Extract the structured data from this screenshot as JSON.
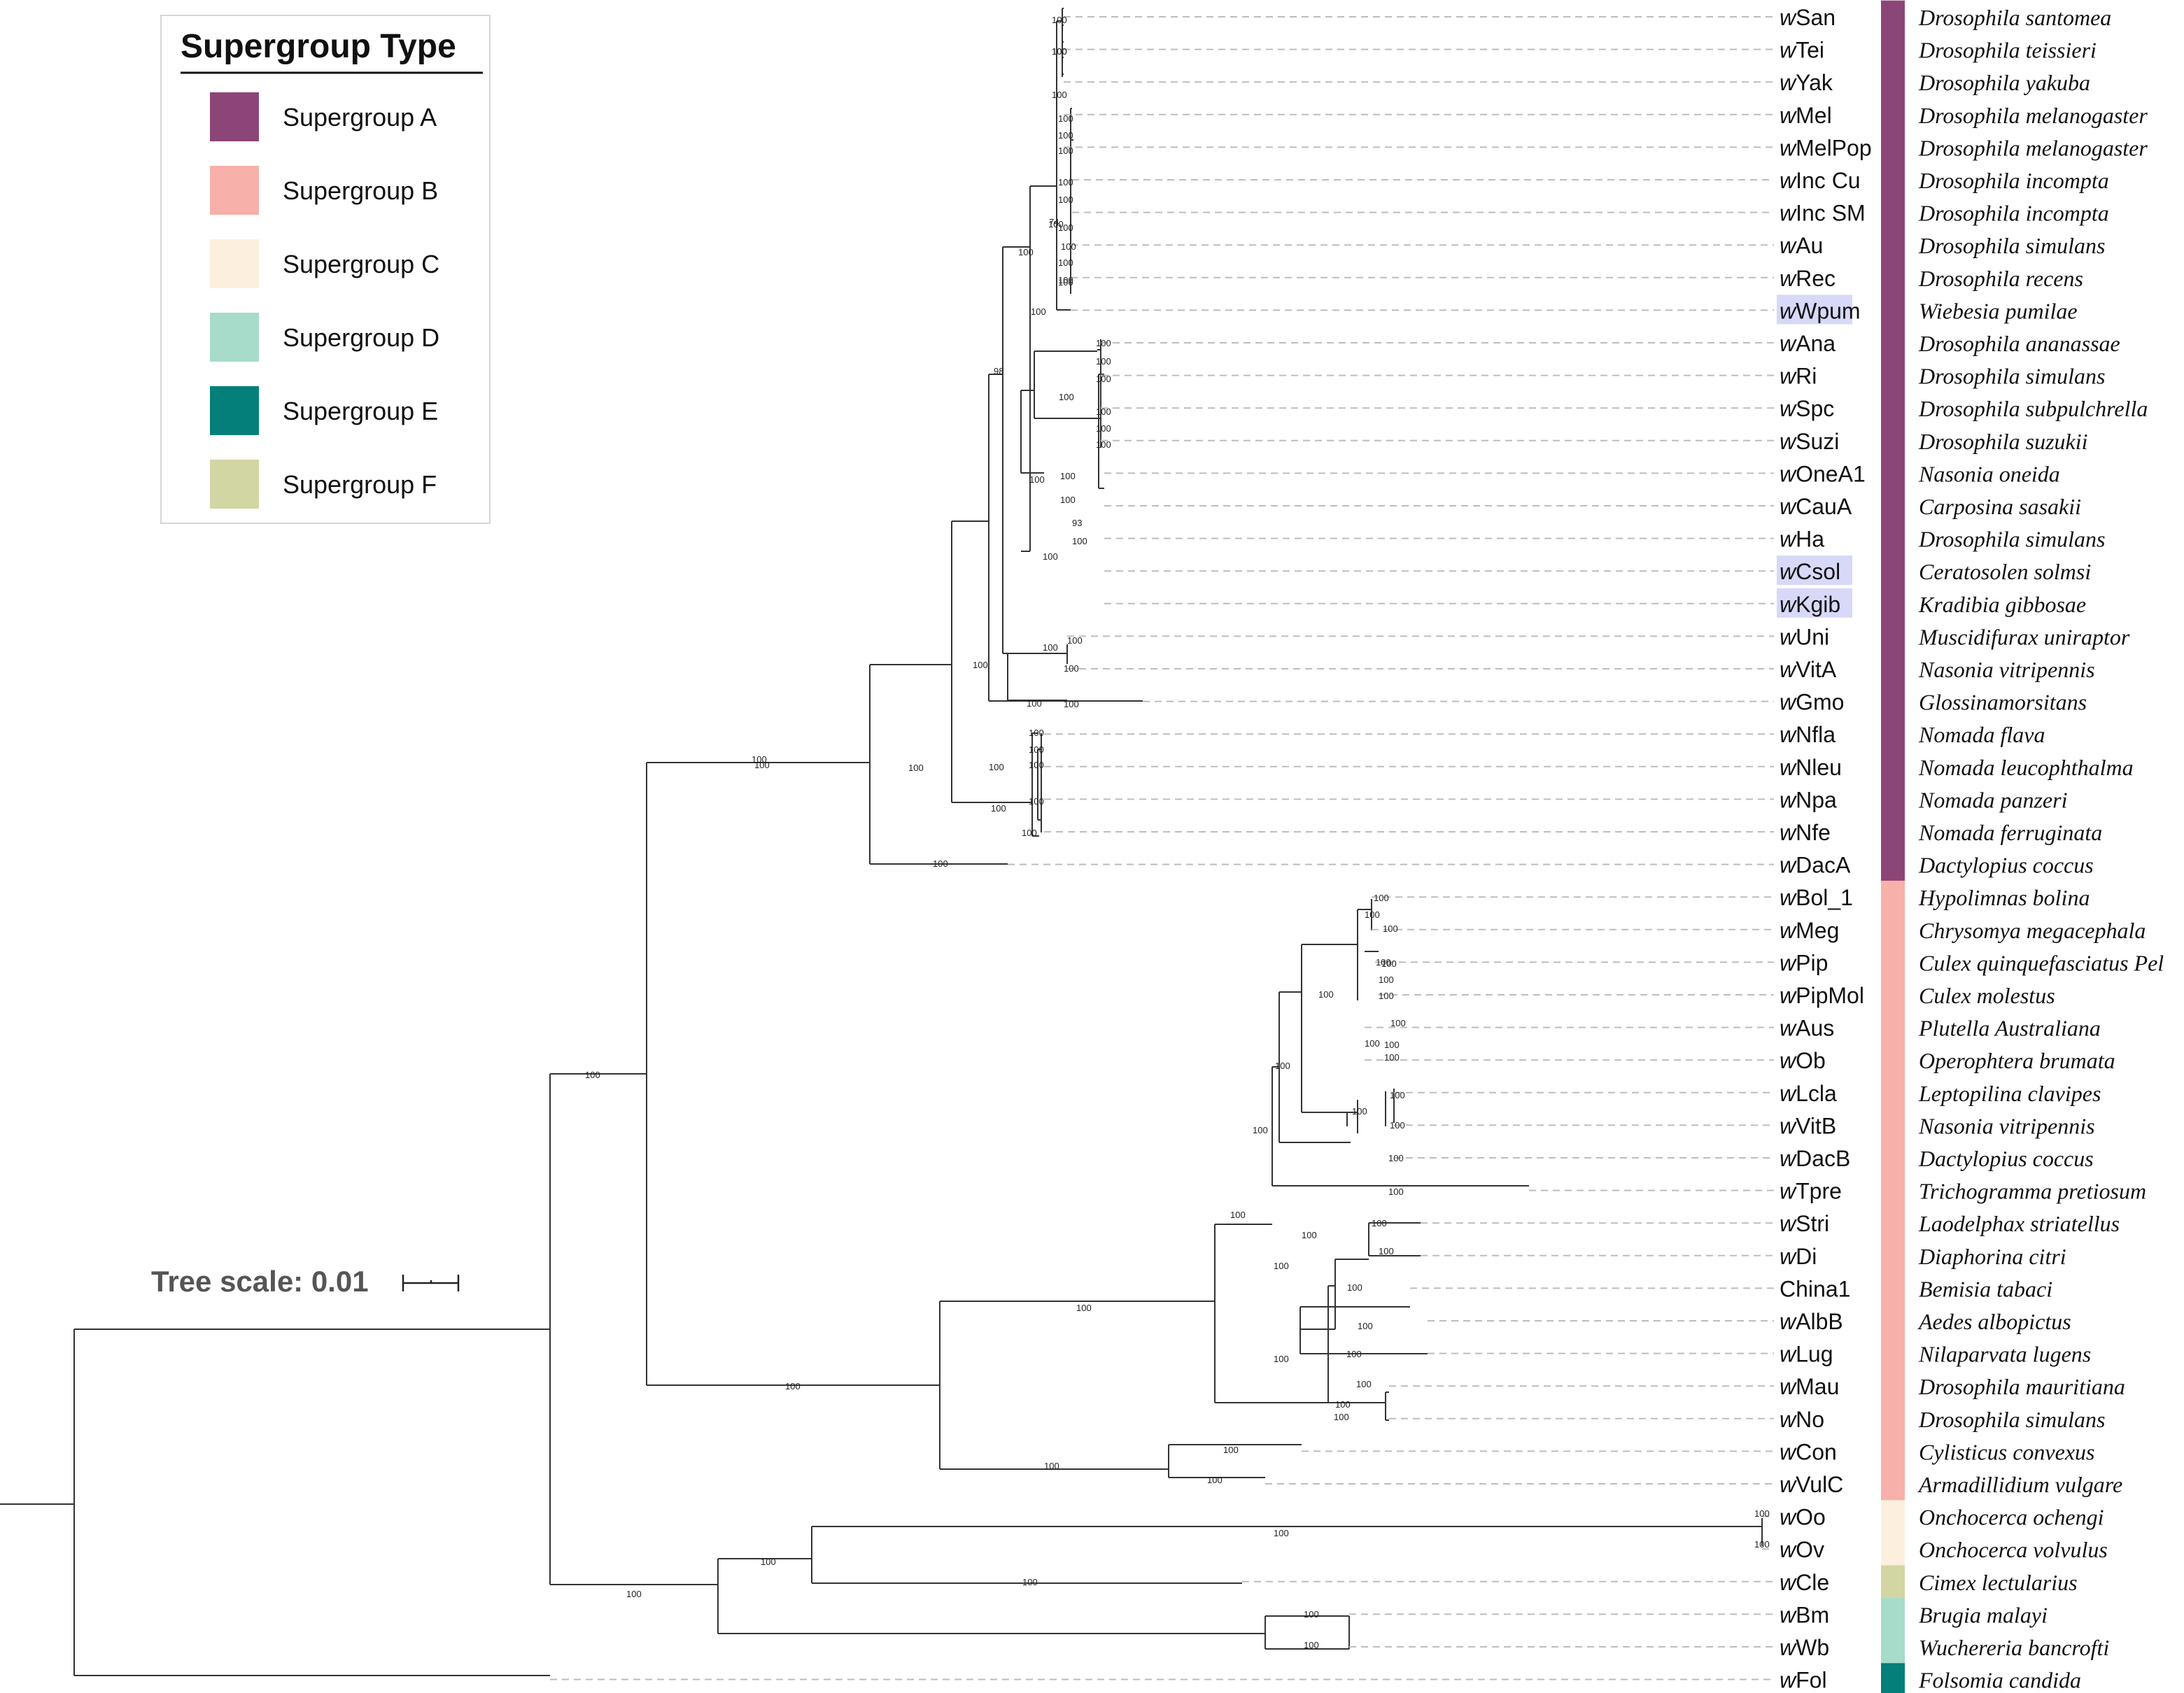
{
  "legend": {
    "title": "Supergroup Type",
    "items": [
      {
        "label": "Supergroup A",
        "color": "#8c4577"
      },
      {
        "label": "Supergroup B",
        "color": "#f7b0aa"
      },
      {
        "label": "Supergroup C",
        "color": "#fdefde"
      },
      {
        "label": "Supergroup D",
        "color": "#a6dcc9"
      },
      {
        "label": "Supergroup E",
        "color": "#047f79"
      },
      {
        "label": "Supergroup F",
        "color": "#d2d6a3"
      }
    ]
  },
  "tree_scale": {
    "label": "Tree scale: 0.01",
    "value": 0.01
  },
  "taxa": [
    {
      "prefix": "w",
      "name": "San",
      "host": "Drosophila santomea",
      "group": "A",
      "highlight": false
    },
    {
      "prefix": "w",
      "name": "Tei",
      "host": "Drosophila teissieri",
      "group": "A",
      "highlight": false
    },
    {
      "prefix": "w",
      "name": "Yak",
      "host": "Drosophila yakuba",
      "group": "A",
      "highlight": false
    },
    {
      "prefix": "w",
      "name": "Mel",
      "host": "Drosophila melanogaster",
      "group": "A",
      "highlight": false
    },
    {
      "prefix": "w",
      "name": "MelPop",
      "host": "Drosophila melanogaster",
      "group": "A",
      "highlight": false
    },
    {
      "prefix": "w",
      "name": "Inc Cu",
      "host": "Drosophila incompta",
      "group": "A",
      "highlight": false
    },
    {
      "prefix": "w",
      "name": "Inc SM",
      "host": "Drosophila incompta",
      "group": "A",
      "highlight": false
    },
    {
      "prefix": "w",
      "name": "Au",
      "host": "Drosophila simulans",
      "group": "A",
      "highlight": false
    },
    {
      "prefix": "w",
      "name": "Rec",
      "host": "Drosophila recens",
      "group": "A",
      "highlight": false
    },
    {
      "prefix": "w",
      "name": "Wpum",
      "host": "Wiebesia pumilae",
      "group": "A",
      "highlight": true
    },
    {
      "prefix": "w",
      "name": "Ana",
      "host": "Drosophila ananassae",
      "group": "A",
      "highlight": false
    },
    {
      "prefix": "w",
      "name": "Ri",
      "host": "Drosophila simulans",
      "group": "A",
      "highlight": false
    },
    {
      "prefix": "w",
      "name": "Spc",
      "host": "Drosophila subpulchrella",
      "group": "A",
      "highlight": false
    },
    {
      "prefix": "w",
      "name": "Suzi",
      "host": "Drosophila suzukii",
      "group": "A",
      "highlight": false
    },
    {
      "prefix": "w",
      "name": "OneA1",
      "host": "Nasonia oneida",
      "group": "A",
      "highlight": false
    },
    {
      "prefix": "w",
      "name": "CauA",
      "host": "Carposina sasakii",
      "group": "A",
      "highlight": false
    },
    {
      "prefix": "w",
      "name": "Ha",
      "host": "Drosophila simulans",
      "group": "A",
      "highlight": false
    },
    {
      "prefix": "w",
      "name": "Csol",
      "host": "Ceratosolen solmsi",
      "group": "A",
      "highlight": true
    },
    {
      "prefix": "w",
      "name": "Kgib",
      "host": "Kradibia gibbosae",
      "group": "A",
      "highlight": true
    },
    {
      "prefix": "w",
      "name": "Uni",
      "host": "Muscidifurax uniraptor",
      "group": "A",
      "highlight": false
    },
    {
      "prefix": "w",
      "name": "VitA",
      "host": "Nasonia vitripennis",
      "group": "A",
      "highlight": false
    },
    {
      "prefix": "w",
      "name": "Gmo",
      "host": "Glossinamorsitans",
      "group": "A",
      "highlight": false
    },
    {
      "prefix": "w",
      "name": "Nfla",
      "host": "Nomada flava",
      "group": "A",
      "highlight": false
    },
    {
      "prefix": "w",
      "name": "Nleu",
      "host": "Nomada leucophthalma",
      "group": "A",
      "highlight": false
    },
    {
      "prefix": "w",
      "name": "Npa",
      "host": "Nomada panzeri",
      "group": "A",
      "highlight": false
    },
    {
      "prefix": "w",
      "name": "Nfe",
      "host": "Nomada ferruginata",
      "group": "A",
      "highlight": false
    },
    {
      "prefix": "w",
      "name": "DacA",
      "host": "Dactylopius coccus",
      "group": "A",
      "highlight": false
    },
    {
      "prefix": "w",
      "name": "Bol_1",
      "host": "Hypolimnas bolina",
      "group": "B",
      "highlight": false
    },
    {
      "prefix": "w",
      "name": "Meg",
      "host": "Chrysomya megacephala",
      "group": "B",
      "highlight": false
    },
    {
      "prefix": "w",
      "name": "Pip",
      "host": "Culex quinquefasciatus Pel",
      "group": "B",
      "highlight": false
    },
    {
      "prefix": "w",
      "name": "PipMol",
      "host": "Culex molestus",
      "group": "B",
      "highlight": false
    },
    {
      "prefix": "w",
      "name": "Aus",
      "host": "Plutella Australiana",
      "group": "B",
      "highlight": false
    },
    {
      "prefix": "w",
      "name": "Ob",
      "host": "Operophtera brumata",
      "group": "B",
      "highlight": false
    },
    {
      "prefix": "w",
      "name": "Lcla",
      "host": "Leptopilina clavipes",
      "group": "B",
      "highlight": false
    },
    {
      "prefix": "w",
      "name": "VitB",
      "host": "Nasonia vitripennis",
      "group": "B",
      "highlight": false
    },
    {
      "prefix": "w",
      "name": "DacB",
      "host": "Dactylopius coccus",
      "group": "B",
      "highlight": false
    },
    {
      "prefix": "w",
      "name": "Tpre",
      "host": "Trichogramma pretiosum",
      "group": "B",
      "highlight": false
    },
    {
      "prefix": "w",
      "name": "Stri",
      "host": "Laodelphax striatellus",
      "group": "B",
      "highlight": false
    },
    {
      "prefix": "w",
      "name": "Di",
      "host": "Diaphorina citri",
      "group": "B",
      "highlight": false
    },
    {
      "prefix": "",
      "name": "China1",
      "host": "Bemisia tabaci",
      "group": "B",
      "highlight": false
    },
    {
      "prefix": "w",
      "name": "AlbB",
      "host": "Aedes albopictus",
      "group": "B",
      "highlight": false
    },
    {
      "prefix": "w",
      "name": "Lug",
      "host": "Nilaparvata lugens",
      "group": "B",
      "highlight": false
    },
    {
      "prefix": "w",
      "name": "Mau",
      "host": "Drosophila mauritiana",
      "group": "B",
      "highlight": false
    },
    {
      "prefix": "w",
      "name": "No",
      "host": "Drosophila simulans",
      "group": "B",
      "highlight": false
    },
    {
      "prefix": "w",
      "name": "Con",
      "host": "Cylisticus convexus",
      "group": "B",
      "highlight": false
    },
    {
      "prefix": "w",
      "name": "VulC",
      "host": "Armadillidium vulgare",
      "group": "B",
      "highlight": false
    },
    {
      "prefix": "w",
      "name": "Oo",
      "host": "Onchocerca ochengi",
      "group": "C",
      "highlight": false
    },
    {
      "prefix": "w",
      "name": "Ov",
      "host": "Onchocerca volvulus",
      "group": "C",
      "highlight": false
    },
    {
      "prefix": "w",
      "name": "Cle",
      "host": "Cimex lectularius",
      "group": "F",
      "highlight": false
    },
    {
      "prefix": "w",
      "name": "Bm",
      "host": "Brugia malayi",
      "group": "D",
      "highlight": false
    },
    {
      "prefix": "w",
      "name": "Wb",
      "host": "Wuchereria bancrofti",
      "group": "D",
      "highlight": false
    },
    {
      "prefix": "w",
      "name": "Fol",
      "host": "Folsomia candida",
      "group": "E",
      "highlight": false
    }
  ],
  "support_labels": [
    "100",
    "100",
    "100",
    "100",
    "100",
    "100",
    "100",
    "100",
    "100",
    "100",
    "100",
    "100",
    "74",
    "100",
    "100",
    "98",
    "100",
    "100",
    "100",
    "100",
    "100",
    "100",
    "100",
    "100",
    "100",
    "100",
    "93",
    "100",
    "100",
    "100",
    "100",
    "100",
    "100",
    "100",
    "100",
    "100",
    "100",
    "100",
    "100",
    "100",
    "100",
    "100",
    "100",
    "100",
    "100",
    "100",
    "100",
    "100",
    "100",
    "100",
    "100",
    "100",
    "100",
    "100",
    "100",
    "100",
    "100",
    "100",
    "100",
    "100",
    "100",
    "100",
    "100",
    "100",
    "100",
    "100",
    "100",
    "100",
    "100",
    "100",
    "100",
    "100",
    "100",
    "100",
    "100",
    "100",
    "100",
    "100",
    "100",
    "100",
    "100",
    "100",
    "100",
    "100",
    "100",
    "100",
    "100",
    "100",
    "100",
    "100",
    "100",
    "100",
    "100",
    "100"
  ]
}
